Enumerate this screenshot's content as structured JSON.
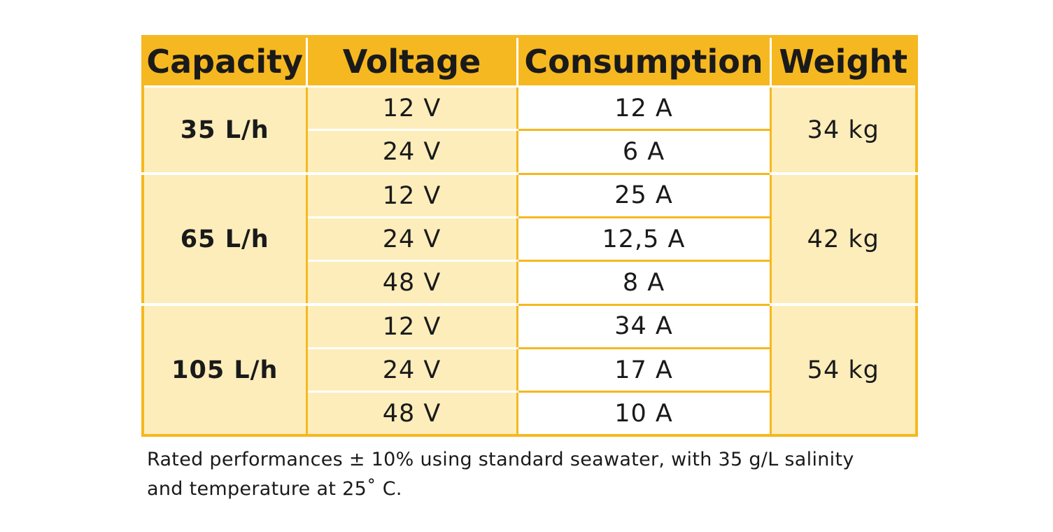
{
  "table": {
    "headers": [
      "Capacity",
      "Voltage",
      "Consumption",
      "Weight"
    ],
    "groups": [
      {
        "capacity": "35 L/h",
        "weight": "34 kg",
        "rows": [
          {
            "voltage": "12 V",
            "consumption": "12 A"
          },
          {
            "voltage": "24 V",
            "consumption": "6 A"
          }
        ]
      },
      {
        "capacity": "65 L/h",
        "weight": "42 kg",
        "rows": [
          {
            "voltage": "12 V",
            "consumption": "25 A"
          },
          {
            "voltage": "24 V",
            "consumption": "12,5 A"
          },
          {
            "voltage": "48 V",
            "consumption": "8 A"
          }
        ]
      },
      {
        "capacity": "105 L/h",
        "weight": "54 kg",
        "rows": [
          {
            "voltage": "12 V",
            "consumption": "34 A"
          },
          {
            "voltage": "24 V",
            "consumption": "17 A"
          },
          {
            "voltage": "48 V",
            "consumption": "10 A"
          }
        ]
      }
    ]
  },
  "footnote": {
    "line1": "Rated performances ± 10% using standard seawater, with 35 g/L salinity",
    "line2": "and temperature at 25˚ C."
  },
  "colors": {
    "header_bg": "#f6b820",
    "cell_light_yellow": "#fdedbb",
    "cell_white": "#ffffff"
  }
}
